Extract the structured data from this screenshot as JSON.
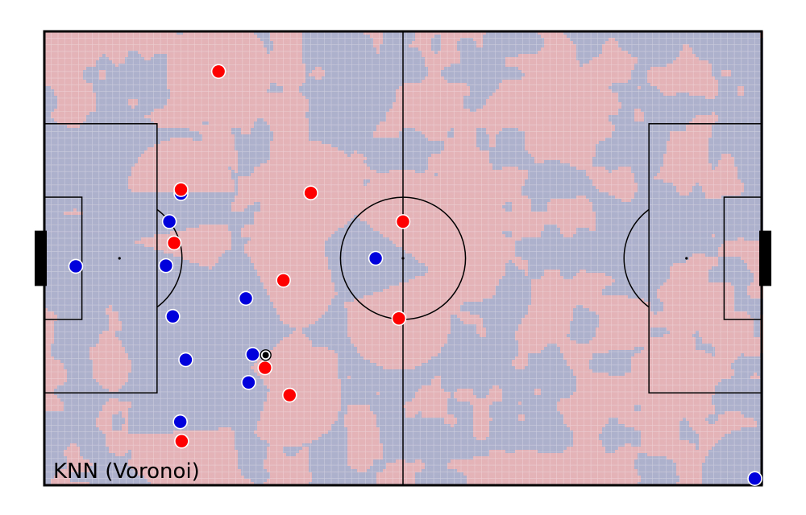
{
  "caption": "KNN (Voronoi)",
  "colors": {
    "team_red": "#ff0000",
    "team_blue": "#0000dd",
    "region_red": "#e3b3b8",
    "region_blue": "#aeb1cc",
    "ball": "#000000",
    "lines": "#000000"
  },
  "pitch": {
    "length_m": 105,
    "width_m": 68,
    "grid_cells": [
      105,
      68
    ]
  },
  "players": {
    "red": [
      {
        "x": 25.5,
        "y": 6.0
      },
      {
        "x": 20.0,
        "y": 23.7
      },
      {
        "x": 39.0,
        "y": 24.2
      },
      {
        "x": 52.5,
        "y": 28.5
      },
      {
        "x": 19.0,
        "y": 31.7
      },
      {
        "x": 35.0,
        "y": 37.3
      },
      {
        "x": 51.9,
        "y": 43.0
      },
      {
        "x": 32.3,
        "y": 50.4
      },
      {
        "x": 35.9,
        "y": 54.5
      },
      {
        "x": 20.1,
        "y": 61.4
      }
    ],
    "blue": [
      {
        "x": 4.6,
        "y": 35.2
      },
      {
        "x": 20.0,
        "y": 24.3
      },
      {
        "x": 18.3,
        "y": 28.5
      },
      {
        "x": 17.8,
        "y": 35.1
      },
      {
        "x": 18.8,
        "y": 42.7
      },
      {
        "x": 29.5,
        "y": 40.0
      },
      {
        "x": 48.5,
        "y": 34.0
      },
      {
        "x": 30.5,
        "y": 48.4
      },
      {
        "x": 20.7,
        "y": 49.2
      },
      {
        "x": 29.9,
        "y": 52.6
      },
      {
        "x": 19.9,
        "y": 58.5
      },
      {
        "x": 104.0,
        "y": 67.0
      }
    ]
  },
  "ball": {
    "x": 32.4,
    "y": 48.5
  }
}
